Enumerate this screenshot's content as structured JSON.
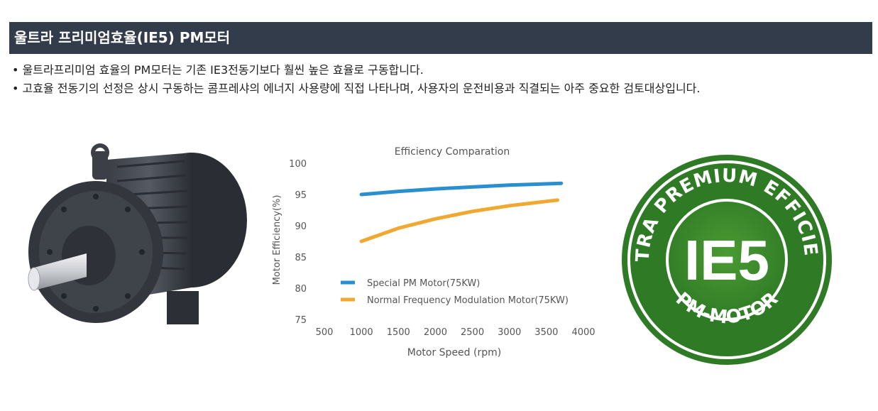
{
  "header": {
    "title": "울트라 프리미엄효율(IE5) PM모터"
  },
  "bullets": [
    "• 울트라프리미엄 효율의 PM모터는 기존 IE3전동기보다 훨씬 높은 효율로 구동합니다.",
    "• 고효율 전동기의 선정은 상시 구동하는 콤프레샤의 에너지 사용량에 직접 나타나며, 사용자의 운전비용과 직결되는 아주 중요한 검토대상입니다."
  ],
  "badge": {
    "top_text": "ULTRA PREMIUM EFFICIENY",
    "center_text": "IE5",
    "bottom_text": "PM-MOTOR",
    "colors": {
      "ring": "#2f7a25",
      "center": "#3f8d2c",
      "text": "#ffffff"
    }
  },
  "chart_data": {
    "type": "line",
    "title": "Efficiency Comparation",
    "xlabel": "Motor Speed (rpm)",
    "ylabel": "Motor Efficiency(%)",
    "xlim": [
      500,
      4000
    ],
    "ylim": [
      75,
      100
    ],
    "x_ticks": [
      "500",
      "1000",
      "1500",
      "2000",
      "2500",
      "3000",
      "3500",
      "4000"
    ],
    "y_ticks": [
      "100",
      "95",
      "90",
      "85",
      "80",
      "75"
    ],
    "legend_position": "bottom-left",
    "series": [
      {
        "name": "Special PM Motor(75KW)",
        "color": "#2a8fd0",
        "x": [
          1000,
          1500,
          2000,
          2500,
          3000,
          3500,
          3700
        ],
        "y": [
          95.0,
          95.5,
          95.9,
          96.2,
          96.5,
          96.7,
          96.8
        ]
      },
      {
        "name": "Normal Frequency Modulation Motor(75KW)",
        "color": "#f0a830",
        "x": [
          1000,
          1500,
          2000,
          2500,
          3000,
          3500,
          3650
        ],
        "y": [
          87.5,
          89.6,
          91.1,
          92.3,
          93.2,
          93.9,
          94.1
        ]
      }
    ]
  }
}
